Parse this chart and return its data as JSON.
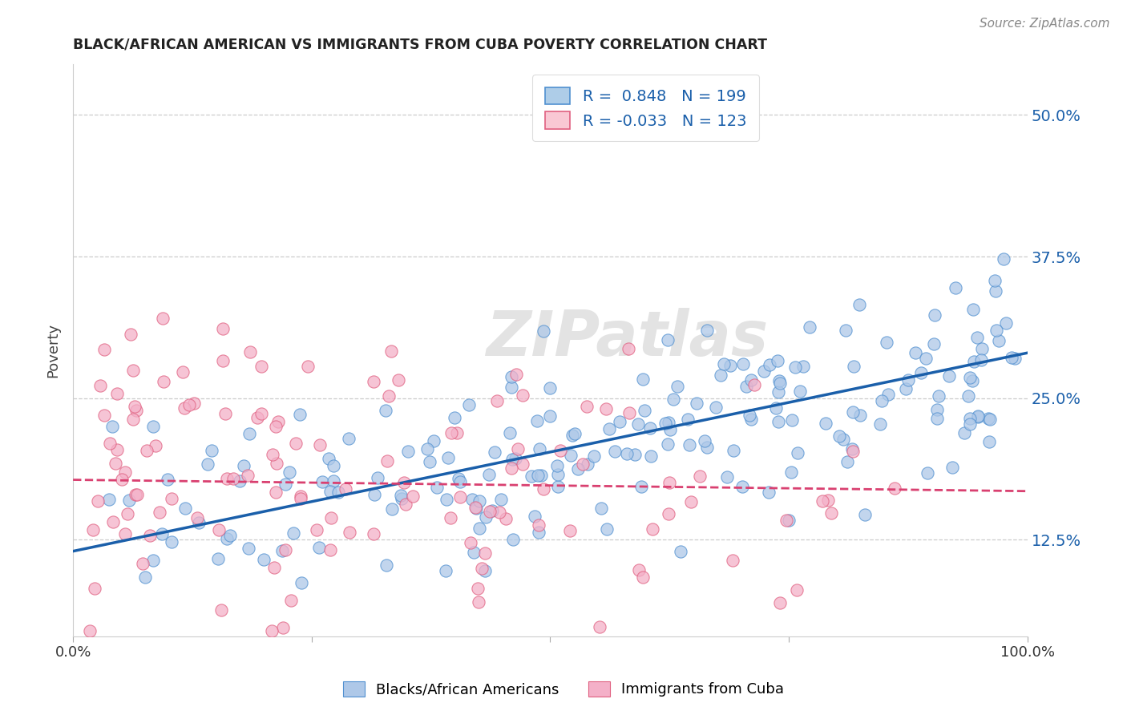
{
  "title": "BLACK/AFRICAN AMERICAN VS IMMIGRANTS FROM CUBA POVERTY CORRELATION CHART",
  "source": "Source: ZipAtlas.com",
  "ylabel": "Poverty",
  "ytick_labels": [
    "12.5%",
    "25.0%",
    "37.5%",
    "50.0%"
  ],
  "ytick_values": [
    0.125,
    0.25,
    0.375,
    0.5
  ],
  "xlim": [
    0.0,
    1.0
  ],
  "ylim": [
    0.04,
    0.545
  ],
  "legend_blue_r": "0.848",
  "legend_blue_n": "199",
  "legend_pink_r": "-0.033",
  "legend_pink_n": "123",
  "blue_color": "#aec8e8",
  "pink_color": "#f4b0c8",
  "blue_edge_color": "#5090d0",
  "pink_edge_color": "#e06080",
  "blue_line_color": "#1a5faa",
  "pink_line_color": "#d94070",
  "blue_fill_color": "#aecde8",
  "pink_fill_color": "#f9c8d4",
  "watermark": "ZIPatlas",
  "legend_label_blue": "Blacks/African Americans",
  "legend_label_pink": "Immigrants from Cuba",
  "blue_intercept": 0.115,
  "blue_slope": 0.175,
  "pink_intercept": 0.178,
  "pink_slope": -0.01,
  "random_seed_blue": 42,
  "random_seed_pink": 99,
  "n_blue": 199,
  "n_pink": 123
}
